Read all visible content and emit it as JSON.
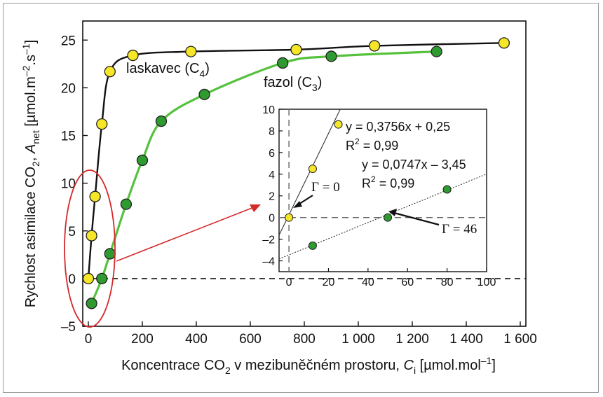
{
  "chart_data": [
    {
      "type": "line",
      "xlabel": "Koncentrace CO₂ v mezibuněčném prostoru, Cᵢ [µmol.mol⁻¹]",
      "ylabel": "Rychlost asimilace CO₂, Aₙₑₜ [µmol.m⁻².s⁻¹]",
      "xlim": [
        0,
        1600
      ],
      "ylim": [
        -5,
        27
      ],
      "x_ticks": [
        "0",
        "200",
        "400",
        "600",
        "800",
        "1 000",
        "1 200",
        "1 400",
        "1 600"
      ],
      "y_ticks": [
        "–5",
        "0",
        "5",
        "10",
        "15",
        "20",
        "25"
      ],
      "grid": false,
      "zero_line": "dashed",
      "series": [
        {
          "name": "laskavec (C4)",
          "label_main": "laskavec (C",
          "label_sub": "4",
          "label_end": ")",
          "color": "#f5e627",
          "line_color": "#111111",
          "x": [
            0,
            12,
            25,
            50,
            80,
            165,
            380,
            770,
            1060,
            1540
          ],
          "y": [
            0,
            4.5,
            8.6,
            16.2,
            21.7,
            23.4,
            23.8,
            24.0,
            24.4,
            24.7
          ]
        },
        {
          "name": "fazol (C3)",
          "label_main": "fazol (C",
          "label_sub": "3",
          "label_end": ")",
          "color": "#2f9a2f",
          "line_color": "#55c13d",
          "x": [
            12,
            50,
            80,
            140,
            200,
            270,
            430,
            720,
            900,
            1290
          ],
          "y": [
            -2.6,
            0,
            2.6,
            7.8,
            12.4,
            16.5,
            19.3,
            22.6,
            23.3,
            23.8
          ]
        }
      ]
    },
    {
      "type": "scatter",
      "inset": true,
      "xlim": [
        -5,
        100
      ],
      "ylim": [
        -5,
        10
      ],
      "x_ticks": [
        "0",
        "20",
        "40",
        "60",
        "80",
        "100"
      ],
      "y_ticks": [
        "–4",
        "–2",
        "0",
        "2",
        "4",
        "6",
        "8",
        "10"
      ],
      "series": [
        {
          "name": "laskavec (C4)",
          "color": "#f5e627",
          "x": [
            0,
            12,
            25
          ],
          "y": [
            0,
            4.5,
            8.6
          ],
          "fit": {
            "slope": 0.3756,
            "intercept": 0.25
          },
          "equation": "y = 0,3756x + 0,25",
          "r2": "0,99",
          "gamma": "0"
        },
        {
          "name": "fazol (C3)",
          "color": "#2f9a2f",
          "x": [
            12,
            50,
            80
          ],
          "y": [
            -2.6,
            0,
            2.6
          ],
          "fit": {
            "slope": 0.0747,
            "intercept": -3.45
          },
          "equation": "y = 0,0747x – 3,45",
          "r2": "0,99",
          "gamma": "46"
        }
      ],
      "r2_prefix": "R",
      "r2_sup": "2",
      "gamma_symbol": "Γ"
    }
  ],
  "axis_text": {
    "x_main": "Koncentrace CO",
    "x_sub": "2",
    "x_mid": " v mezibuněčném prostoru, ",
    "x_var": "C",
    "x_var_sub": "i",
    "x_unit": " [µmol.mol",
    "x_unit_sup": "–1",
    "x_end": "]",
    "y_main": "Rychlost asimilace CO",
    "y_sub": "2",
    "y_mid": ", ",
    "y_var": "A",
    "y_var_sub": "net",
    "y_unit": " [µmol.m",
    "y_unit_sup1": "–2",
    "y_unit_mid": ".s",
    "y_unit_sup2": "–1",
    "y_end": "]"
  },
  "colors": {
    "highlight": "#d42a2a",
    "axis": "#111111"
  }
}
